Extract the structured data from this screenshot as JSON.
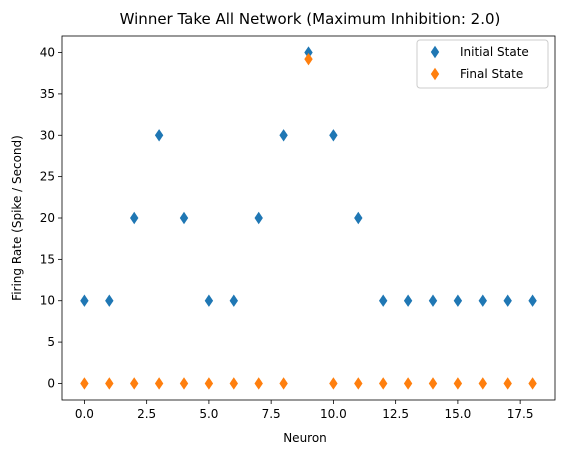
{
  "chart_data": {
    "type": "scatter",
    "title": "Winner Take All Network (Maximum Inhibition: 2.0)",
    "xlabel": "Neuron",
    "ylabel": "Firing Rate (Spike / Second)",
    "xlim": [
      -0.9,
      18.9
    ],
    "ylim": [
      -2,
      42
    ],
    "x_ticks": [
      0,
      2.5,
      5,
      7.5,
      10,
      12.5,
      15,
      17.5
    ],
    "x_tick_labels": [
      "0.0",
      "2.5",
      "5.0",
      "7.5",
      "10.0",
      "12.5",
      "15.0",
      "17.5"
    ],
    "y_ticks": [
      0,
      5,
      10,
      15,
      20,
      25,
      30,
      35,
      40
    ],
    "y_tick_labels": [
      "0",
      "5",
      "10",
      "15",
      "20",
      "25",
      "30",
      "35",
      "40"
    ],
    "grid": false,
    "legend_position": "top-right",
    "marker": "thin-diamond",
    "x": [
      0,
      1,
      2,
      3,
      4,
      5,
      6,
      7,
      8,
      9,
      10,
      11,
      12,
      13,
      14,
      15,
      16,
      17,
      18
    ],
    "series": [
      {
        "name": "Initial State",
        "color": "#1f77b4",
        "values": [
          10,
          10,
          20,
          30,
          20,
          10,
          10,
          20,
          30,
          40,
          30,
          20,
          10,
          10,
          10,
          10,
          10,
          10,
          10
        ]
      },
      {
        "name": "Final State",
        "color": "#ff7f0e",
        "values": [
          0,
          0,
          0,
          0,
          0,
          0,
          0,
          0,
          0,
          39.2,
          0,
          0,
          0,
          0,
          0,
          0,
          0,
          0,
          0
        ]
      }
    ]
  }
}
